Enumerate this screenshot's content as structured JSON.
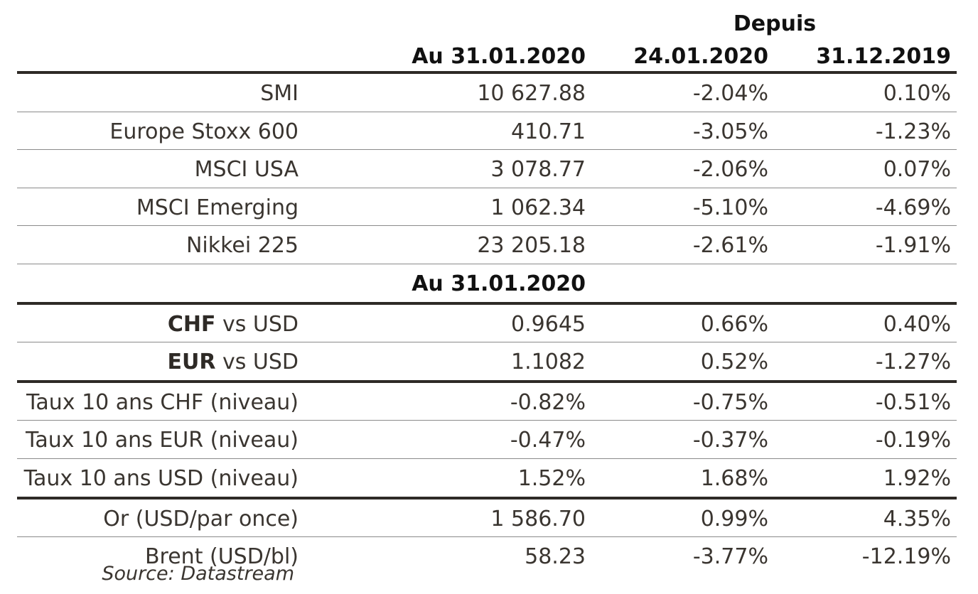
{
  "header": {
    "group_title": "Depuis",
    "col1": "Au 31.01.2020",
    "col2": "24.01.2020",
    "col3": "31.12.2019"
  },
  "equities": [
    {
      "label": "SMI",
      "v1": "10 627.88",
      "v2": "-2.04%",
      "v3": "0.10%"
    },
    {
      "label": "Europe Stoxx 600",
      "v1": "410.71",
      "v2": "-3.05%",
      "v3": "-1.23%"
    },
    {
      "label": "MSCI USA",
      "v1": "3 078.77",
      "v2": "-2.06%",
      "v3": "0.07%"
    },
    {
      "label": "MSCI Emerging",
      "v1": "1 062.34",
      "v2": "-5.10%",
      "v3": "-4.69%"
    },
    {
      "label": "Nikkei 225",
      "v1": "23 205.18",
      "v2": "-2.61%",
      "v3": "-1.91%"
    }
  ],
  "subheader": "Au 31.01.2020",
  "fx": [
    {
      "code": "CHF",
      "rest": " vs USD",
      "v1": "0.9645",
      "v2": "0.66%",
      "v3": "0.40%"
    },
    {
      "code": "EUR",
      "rest": " vs USD",
      "v1": "1.1082",
      "v2": "0.52%",
      "v3": "-1.27%"
    }
  ],
  "rates": [
    {
      "label": "Taux 10 ans CHF (niveau)",
      "v1": "-0.82%",
      "v2": "-0.75%",
      "v3": "-0.51%"
    },
    {
      "label": "Taux 10 ans EUR (niveau)",
      "v1": "-0.47%",
      "v2": "-0.37%",
      "v3": "-0.19%"
    },
    {
      "label": "Taux 10 ans USD (niveau)",
      "v1": "1.52%",
      "v2": "1.68%",
      "v3": "1.92%"
    }
  ],
  "commodities": [
    {
      "label": "Or (USD/par once)",
      "v1": "1 586.70",
      "v2": "0.99%",
      "v3": "4.35%"
    },
    {
      "label": "Brent (USD/bl)",
      "v1": "58.23",
      "v2": "-3.77%",
      "v3": "-12.19%"
    }
  ],
  "source": "Source: Datastream"
}
